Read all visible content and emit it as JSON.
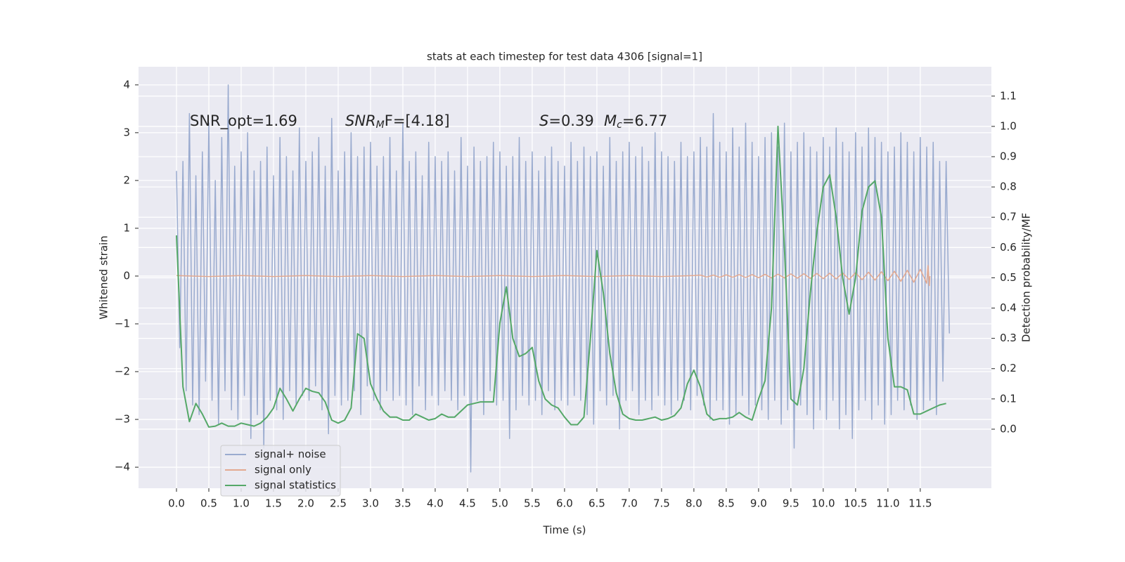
{
  "chart_data": {
    "type": "line",
    "title": "stats at each timestep for test data 4306 [signal=1]",
    "xlabel": "Time (s)",
    "ylabel": "Whitened strain",
    "y2label": "Detection probability/MF",
    "annotations": [
      {
        "parts": [
          "SNR_opt=1.69"
        ]
      },
      {
        "parts": [
          "SNR",
          "M",
          "F=[4.18]"
        ]
      },
      {
        "parts": [
          "S",
          "=0.39"
        ]
      },
      {
        "parts": [
          "M",
          "c",
          "=6.77"
        ]
      }
    ],
    "xlim": [
      -0.587,
      12.6
    ],
    "xticks": [
      {
        "value": 0,
        "label": "0.0"
      },
      0.5,
      {
        "value": 1,
        "label": "1.0"
      },
      1.5,
      {
        "value": 2,
        "label": "2.0"
      },
      2.5,
      {
        "value": 3,
        "label": "3.0"
      },
      3.5,
      {
        "value": 4,
        "label": "4.0"
      },
      4.5,
      {
        "value": 5,
        "label": "5.0"
      },
      5.5,
      {
        "value": 6,
        "label": "6.0"
      },
      6.5,
      {
        "value": 7,
        "label": "7.0"
      },
      7.5,
      {
        "value": 8,
        "label": "8.0"
      },
      8.5,
      {
        "value": 9,
        "label": "9.0"
      },
      9.5,
      {
        "value": 10,
        "label": "10.0"
      },
      10.5,
      {
        "value": 11,
        "label": "11.0"
      },
      11.5
    ],
    "ylim": [
      -4.44,
      4.38
    ],
    "yticks": [
      {
        "value": -4,
        "label": "−4"
      },
      {
        "value": -3,
        "label": "−3"
      },
      {
        "value": -2,
        "label": "−2"
      },
      {
        "value": -1,
        "label": "−1"
      },
      0,
      1,
      2,
      3,
      4
    ],
    "y2lim": [
      -0.195,
      1.197
    ],
    "y2ticks": [
      {
        "value": 0,
        "label": "0.0"
      },
      0.1,
      0.2,
      0.3,
      0.4,
      0.5,
      0.6,
      0.7,
      0.8,
      0.9,
      {
        "value": 1,
        "label": "1.0"
      },
      1.1
    ],
    "grid": true,
    "legend": "lower left",
    "series": [
      {
        "name": "signal+ noise",
        "color": "#9aabcf",
        "x": [
          0,
          0.05,
          0.1,
          0.15,
          0.2,
          0.25,
          0.3,
          0.35,
          0.4,
          0.45,
          0.5,
          0.55,
          0.6,
          0.65,
          0.7,
          0.75,
          0.8,
          0.85,
          0.9,
          0.95,
          1,
          1.05,
          1.1,
          1.15,
          1.2,
          1.25,
          1.3,
          1.35,
          1.4,
          1.45,
          1.5,
          1.55,
          1.6,
          1.65,
          1.7,
          1.75,
          1.8,
          1.85,
          1.9,
          1.95,
          2,
          2.05,
          2.1,
          2.15,
          2.2,
          2.25,
          2.3,
          2.35,
          2.4,
          2.45,
          2.5,
          2.55,
          2.6,
          2.65,
          2.7,
          2.75,
          2.8,
          2.85,
          2.9,
          2.95,
          3,
          3.05,
          3.1,
          3.15,
          3.2,
          3.25,
          3.3,
          3.35,
          3.4,
          3.45,
          3.5,
          3.55,
          3.6,
          3.65,
          3.7,
          3.75,
          3.8,
          3.85,
          3.9,
          3.95,
          4,
          4.05,
          4.1,
          4.15,
          4.2,
          4.25,
          4.3,
          4.35,
          4.4,
          4.45,
          4.5,
          4.55,
          4.6,
          4.65,
          4.7,
          4.75,
          4.8,
          4.85,
          4.9,
          4.95,
          5,
          5.05,
          5.1,
          5.15,
          5.2,
          5.25,
          5.3,
          5.35,
          5.4,
          5.45,
          5.5,
          5.55,
          5.6,
          5.65,
          5.7,
          5.75,
          5.8,
          5.85,
          5.9,
          5.95,
          6,
          6.05,
          6.1,
          6.15,
          6.2,
          6.25,
          6.3,
          6.35,
          6.4,
          6.45,
          6.5,
          6.55,
          6.6,
          6.65,
          6.7,
          6.75,
          6.8,
          6.85,
          6.9,
          6.95,
          7,
          7.05,
          7.1,
          7.15,
          7.2,
          7.25,
          7.3,
          7.35,
          7.4,
          7.45,
          7.5,
          7.55,
          7.6,
          7.65,
          7.7,
          7.75,
          7.8,
          7.85,
          7.9,
          7.95,
          8,
          8.05,
          8.1,
          8.15,
          8.2,
          8.25,
          8.3,
          8.35,
          8.4,
          8.45,
          8.5,
          8.55,
          8.6,
          8.65,
          8.7,
          8.75,
          8.8,
          8.85,
          8.9,
          8.95,
          9,
          9.05,
          9.1,
          9.15,
          9.2,
          9.25,
          9.3,
          9.35,
          9.4,
          9.45,
          9.5,
          9.55,
          9.6,
          9.65,
          9.7,
          9.75,
          9.8,
          9.85,
          9.9,
          9.95,
          10,
          10.05,
          10.1,
          10.15,
          10.2,
          10.25,
          10.3,
          10.35,
          10.4,
          10.45,
          10.5,
          10.55,
          10.6,
          10.65,
          10.7,
          10.75,
          10.8,
          10.85,
          10.9,
          10.95,
          11,
          11.05,
          11.1,
          11.15,
          11.2,
          11.25,
          11.3,
          11.35,
          11.4,
          11.45,
          11.5,
          11.55,
          11.6,
          11.65,
          11.7,
          11.75,
          11.8,
          11.85,
          11.9,
          11.95
        ],
        "values": [
          2.2,
          -1.5,
          2.4,
          -2.4,
          3.4,
          -2.7,
          2.1,
          -2.9,
          2.6,
          -2.2,
          3.2,
          -2.6,
          2.0,
          -3.1,
          2.9,
          -2.4,
          4.0,
          -2.8,
          2.3,
          -3.0,
          2.6,
          -2.5,
          3.0,
          -3.4,
          2.2,
          -2.9,
          2.4,
          -3.6,
          2.7,
          -2.6,
          2.1,
          -2.8,
          2.9,
          -3.0,
          2.5,
          -2.4,
          2.2,
          -2.7,
          3.1,
          -2.5,
          2.4,
          -2.6,
          2.6,
          -2.3,
          2.9,
          -2.8,
          2.3,
          -3.3,
          3.3,
          -2.5,
          2.2,
          -2.7,
          2.6,
          -2.6,
          3.0,
          -2.4,
          2.5,
          -2.9,
          2.7,
          -2.3,
          2.8,
          -2.6,
          2.3,
          -2.8,
          2.5,
          -2.4,
          2.9,
          -2.6,
          2.2,
          -2.5,
          3.2,
          -2.7,
          2.4,
          -2.9,
          2.6,
          -2.3,
          2.1,
          -2.8,
          2.8,
          -2.5,
          2.5,
          -2.7,
          2.4,
          -2.4,
          2.6,
          -2.6,
          2.2,
          -2.8,
          2.9,
          -2.5,
          2.3,
          -4.1,
          2.7,
          -2.6,
          2.4,
          -2.9,
          2.5,
          -2.4,
          2.8,
          -2.7,
          2.6,
          -2.6,
          2.3,
          -3.4,
          2.5,
          -2.8,
          2.9,
          -2.5,
          2.4,
          -2.7,
          2.6,
          -2.6,
          2.2,
          -2.9,
          2.5,
          -2.4,
          2.7,
          -2.8,
          2.4,
          -2.6,
          2.3,
          -2.7,
          2.8,
          -2.5,
          2.4,
          -2.6,
          2.7,
          -2.9,
          2.5,
          -3.1,
          2.6,
          -2.4,
          2.3,
          -2.7,
          2.9,
          -2.5,
          2.4,
          -3.2,
          2.6,
          -2.6,
          2.8,
          -2.4,
          2.5,
          -2.9,
          2.7,
          -2.6,
          2.4,
          -2.8,
          3.0,
          -2.5,
          2.6,
          -2.7,
          2.5,
          -2.9,
          2.4,
          -2.6,
          2.8,
          -2.6,
          2.5,
          -2.8,
          2.6,
          -2.5,
          2.9,
          -2.7,
          2.7,
          -3.0,
          3.4,
          -2.6,
          2.8,
          -2.8,
          2.6,
          -3.1,
          3.1,
          -2.9,
          2.7,
          -2.5,
          3.2,
          -2.9,
          2.8,
          -2.7,
          2.5,
          -2.8,
          2.9,
          -3.0,
          3.0,
          -2.6,
          2.7,
          -3.1,
          3.2,
          -2.8,
          2.6,
          -3.6,
          2.8,
          -2.7,
          3.0,
          -2.9,
          2.7,
          -3.2,
          2.6,
          -2.8,
          2.9,
          -3.0,
          2.7,
          -2.6,
          3.1,
          -3.2,
          2.8,
          -2.9,
          2.6,
          -3.4,
          3.0,
          -2.8,
          2.7,
          -2.6,
          3.1,
          -3.0,
          2.9,
          -2.7,
          2.8,
          -3.1,
          2.6,
          -2.9,
          2.7,
          -2.6,
          3.0,
          -2.8,
          2.8,
          -2.7,
          2.6,
          -3.0,
          2.9,
          -2.8,
          2.7,
          -2.6,
          2.8,
          -2.9,
          2.4,
          -2.2,
          2.4,
          -1.2
        ]
      },
      {
        "name": "signal only",
        "color": "#e3a990",
        "x": [
          0,
          0.5,
          1,
          1.5,
          2,
          2.5,
          3,
          3.5,
          4,
          4.5,
          5,
          5.5,
          6,
          6.5,
          7,
          7.5,
          8,
          8.1,
          8.2,
          8.3,
          8.4,
          8.5,
          8.6,
          8.7,
          8.8,
          8.9,
          9,
          9.1,
          9.2,
          9.3,
          9.4,
          9.5,
          9.6,
          9.7,
          9.8,
          9.9,
          10,
          10.1,
          10.2,
          10.3,
          10.4,
          10.5,
          10.6,
          10.7,
          10.8,
          10.9,
          11,
          11.1,
          11.2,
          11.3,
          11.4,
          11.5,
          11.6,
          11.62,
          11.64,
          11.65
        ],
        "values": [
          0.01,
          -0.01,
          0.01,
          -0.01,
          0.01,
          -0.01,
          0.01,
          -0.01,
          0.01,
          -0.01,
          0.01,
          -0.01,
          0.01,
          -0.01,
          0.01,
          -0.01,
          0.01,
          0.02,
          -0.02,
          0.02,
          -0.025,
          0.025,
          -0.025,
          0.03,
          -0.03,
          0.03,
          -0.035,
          0.035,
          -0.04,
          0.04,
          -0.04,
          0.045,
          -0.045,
          0.05,
          -0.05,
          0.055,
          -0.055,
          0.06,
          -0.06,
          0.065,
          -0.07,
          0.07,
          -0.075,
          0.08,
          -0.085,
          0.09,
          -0.095,
          0.1,
          -0.11,
          0.12,
          -0.13,
          0.14,
          -0.15,
          0.22,
          -0.2,
          0
        ]
      },
      {
        "name": "signal statistics",
        "color": "#55a868",
        "axis": "y2",
        "x": [
          0,
          0.1,
          0.2,
          0.3,
          0.4,
          0.5,
          0.6,
          0.7,
          0.8,
          0.9,
          1,
          1.1,
          1.2,
          1.3,
          1.4,
          1.5,
          1.6,
          1.7,
          1.8,
          1.9,
          2,
          2.1,
          2.2,
          2.3,
          2.4,
          2.5,
          2.6,
          2.7,
          2.8,
          2.9,
          3,
          3.1,
          3.2,
          3.3,
          3.4,
          3.5,
          3.6,
          3.7,
          3.8,
          3.9,
          4,
          4.1,
          4.2,
          4.3,
          4.4,
          4.5,
          4.6,
          4.7,
          4.8,
          4.9,
          5,
          5.1,
          5.2,
          5.3,
          5.4,
          5.5,
          5.6,
          5.7,
          5.8,
          5.9,
          6,
          6.1,
          6.2,
          6.3,
          6.4,
          6.5,
          6.6,
          6.7,
          6.8,
          6.9,
          7,
          7.1,
          7.2,
          7.3,
          7.4,
          7.5,
          7.6,
          7.7,
          7.8,
          7.9,
          8,
          8.1,
          8.2,
          8.3,
          8.4,
          8.5,
          8.6,
          8.7,
          8.8,
          8.9,
          9,
          9.1,
          9.2,
          9.3,
          9.4,
          9.5,
          9.6,
          9.7,
          9.8,
          9.9,
          10,
          10.1,
          10.2,
          10.3,
          10.4,
          10.5,
          10.6,
          10.7,
          10.8,
          10.9,
          11,
          11.1,
          11.2,
          11.3,
          11.4,
          11.5,
          11.6,
          11.7,
          11.8,
          11.9
        ],
        "values": [
          0.64,
          0.14,
          0.025,
          0.085,
          0.05,
          0.007,
          0.01,
          0.02,
          0.01,
          0.01,
          0.02,
          0.015,
          0.01,
          0.02,
          0.04,
          0.07,
          0.135,
          0.1,
          0.06,
          0.1,
          0.135,
          0.125,
          0.12,
          0.09,
          0.03,
          0.02,
          0.03,
          0.07,
          0.315,
          0.3,
          0.15,
          0.1,
          0.06,
          0.04,
          0.04,
          0.03,
          0.03,
          0.05,
          0.04,
          0.03,
          0.035,
          0.05,
          0.04,
          0.04,
          0.06,
          0.08,
          0.085,
          0.09,
          0.09,
          0.09,
          0.35,
          0.47,
          0.3,
          0.24,
          0.25,
          0.27,
          0.16,
          0.1,
          0.08,
          0.07,
          0.04,
          0.015,
          0.015,
          0.04,
          0.3,
          0.59,
          0.45,
          0.25,
          0.12,
          0.05,
          0.035,
          0.03,
          0.03,
          0.035,
          0.04,
          0.03,
          0.035,
          0.045,
          0.07,
          0.15,
          0.195,
          0.14,
          0.05,
          0.03,
          0.035,
          0.035,
          0.04,
          0.055,
          0.04,
          0.03,
          0.1,
          0.16,
          0.4,
          1.0,
          0.6,
          0.1,
          0.08,
          0.2,
          0.45,
          0.65,
          0.8,
          0.84,
          0.7,
          0.5,
          0.38,
          0.5,
          0.72,
          0.8,
          0.82,
          0.7,
          0.3,
          0.14,
          0.14,
          0.13,
          0.05,
          0.05,
          0.06,
          0.07,
          0.08,
          0.085
        ]
      }
    ]
  }
}
